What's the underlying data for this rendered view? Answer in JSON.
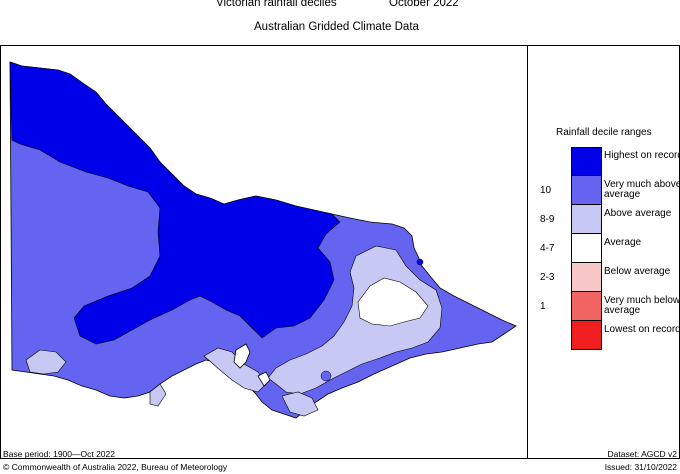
{
  "header": {
    "title": "Victorian rainfall deciles",
    "period": "October 2022",
    "subtitle": "Australian Gridded Climate Data"
  },
  "legend": {
    "title": "Rainfall decile ranges",
    "rows": [
      {
        "code": "",
        "label": "Highest on record",
        "color": "#0000e8"
      },
      {
        "code": "10",
        "label": "Very much above average",
        "color": "#6464f0"
      },
      {
        "code": "8-9",
        "label": "Above average",
        "color": "#c8c8f5"
      },
      {
        "code": "4-7",
        "label": "Average",
        "color": "#ffffff"
      },
      {
        "code": "2-3",
        "label": "Below average",
        "color": "#f8c8c8"
      },
      {
        "code": "1",
        "label": "Very much below average",
        "color": "#f06464"
      },
      {
        "code": "",
        "label": "Lowest on record",
        "color": "#f01e1e"
      }
    ]
  },
  "footer": {
    "base_period": "Base period: 1900—Oct 2022",
    "dataset": "Dataset: AGCD v2",
    "copyright": "© Commonwealth of Australia 2022, Bureau of Meteorology",
    "issued": "Issued: 31/10/2022"
  }
}
